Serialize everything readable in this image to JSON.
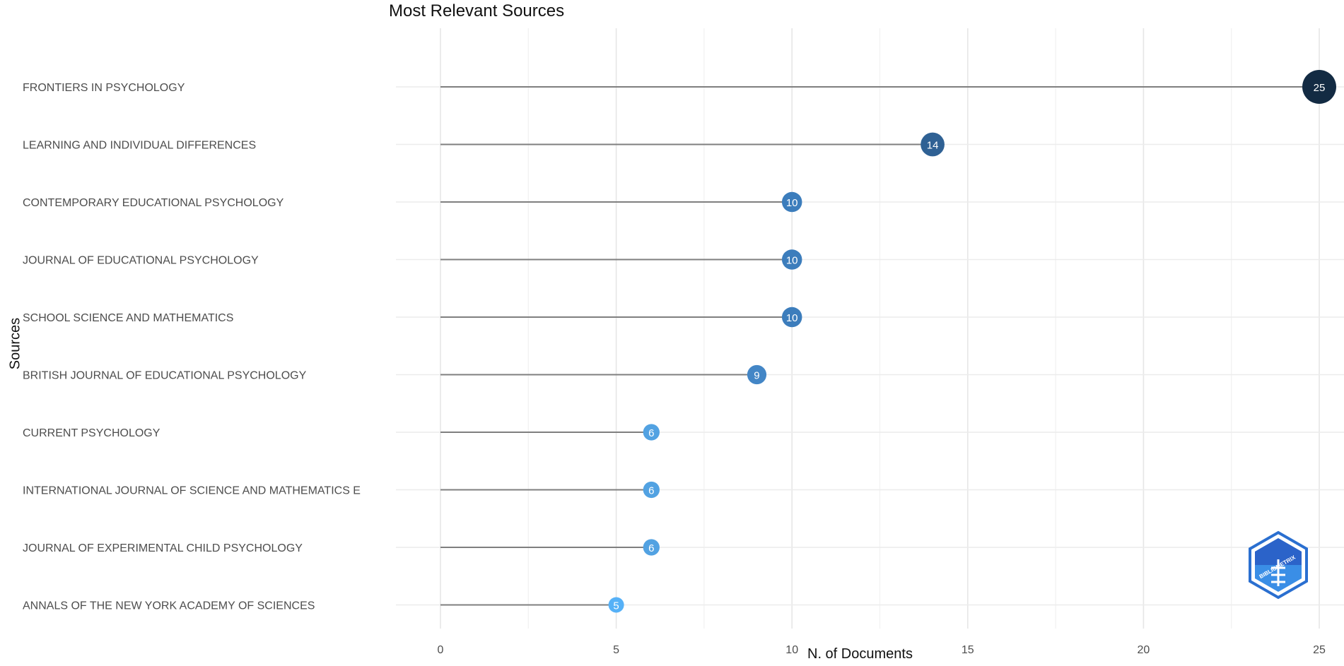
{
  "chart_data": {
    "type": "lollipop",
    "title": "Most Relevant Sources",
    "xlabel": "N. of Documents",
    "ylabel": "Sources",
    "xlim": [
      0,
      26
    ],
    "xticks": [
      0,
      5,
      10,
      15,
      20,
      25
    ],
    "grid": true,
    "categories": [
      "FRONTIERS IN PSYCHOLOGY",
      "LEARNING AND INDIVIDUAL DIFFERENCES",
      "CONTEMPORARY EDUCATIONAL PSYCHOLOGY",
      "JOURNAL OF EDUCATIONAL PSYCHOLOGY",
      "SCHOOL SCIENCE AND MATHEMATICS",
      "BRITISH JOURNAL OF EDUCATIONAL PSYCHOLOGY",
      "CURRENT PSYCHOLOGY",
      "INTERNATIONAL JOURNAL OF SCIENCE AND MATHEMATICS E",
      "JOURNAL OF EXPERIMENTAL CHILD PSYCHOLOGY",
      "ANNALS OF THE NEW YORK ACADEMY OF SCIENCES"
    ],
    "values": [
      25,
      14,
      10,
      10,
      10,
      9,
      6,
      6,
      6,
      5
    ],
    "point_colors": [
      "#132B43",
      "#2F6194",
      "#3C7DBC",
      "#3C7DBC",
      "#3C7DBC",
      "#4386C6",
      "#52A2E2",
      "#52A2E2",
      "#52A2E2",
      "#56B1F7"
    ]
  },
  "watermark": {
    "text": "BIBLIOMETRIX",
    "icon": "bibliometrix-logo-icon",
    "color": "#1E88D6"
  }
}
